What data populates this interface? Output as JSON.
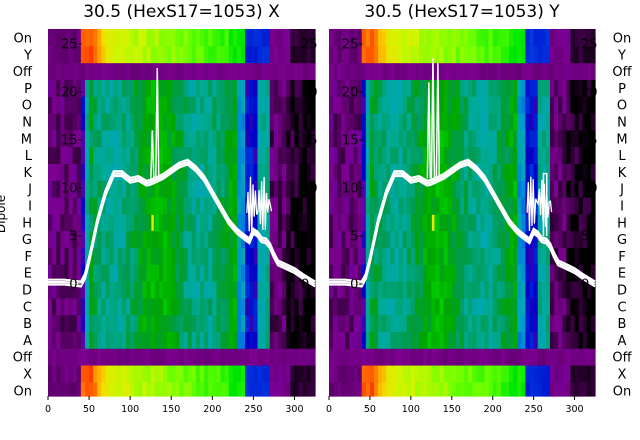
{
  "chart_data": {
    "type": "heatmap",
    "panels": [
      {
        "title": "30.5 (HexS17=1053) X",
        "spike_x": [
          127,
          133
        ],
        "yellow_mark_x": 127
      },
      {
        "title": "30.5 (HexS17=1053) Y",
        "spike_x": [
          122,
          127,
          133
        ],
        "yellow_mark_x": 127
      }
    ],
    "ylabel": "Dipole",
    "x_ticks": [
      0,
      50,
      100,
      150,
      200,
      250,
      300
    ],
    "x_range": [
      0,
      325
    ],
    "y_tick_labels": [
      "On",
      "Y",
      "Off",
      "P",
      "O",
      "N",
      "M",
      "L",
      "K",
      "J",
      "I",
      "H",
      "G",
      "F",
      "E",
      "D",
      "C",
      "B",
      "A",
      "Off",
      "X",
      "On"
    ],
    "right_y_tick_labels": [
      "On",
      "Y",
      "Off",
      "P",
      "O",
      "N",
      "M",
      "L",
      "K",
      "J",
      "I",
      "H",
      "G",
      "F",
      "E",
      "D",
      "C",
      "B",
      "A",
      "Off",
      "X",
      "On"
    ],
    "trace_ticks": [
      0,
      5,
      10,
      15,
      20,
      25
    ],
    "trace_range": [
      0,
      26
    ],
    "trace_points": {
      "x": [
        0,
        20,
        40,
        45,
        50,
        60,
        70,
        80,
        90,
        100,
        110,
        120,
        125,
        130,
        135,
        140,
        150,
        160,
        170,
        180,
        190,
        200,
        210,
        220,
        230,
        240,
        245,
        250,
        255,
        260,
        265,
        270,
        275,
        280,
        290,
        300,
        310,
        325
      ],
      "y": [
        0.2,
        0.2,
        0.0,
        0.8,
        2.5,
        6.5,
        9.5,
        11.5,
        11.5,
        10.8,
        11.0,
        10.5,
        10.6,
        10.8,
        11.0,
        11.2,
        11.8,
        12.4,
        12.7,
        12.0,
        11.0,
        9.5,
        8.0,
        6.5,
        5.5,
        4.8,
        4.5,
        5.5,
        5.2,
        4.6,
        4.5,
        4.0,
        3.0,
        2.2,
        1.8,
        1.4,
        0.8,
        0.0
      ]
    },
    "colormap": "nipy_spectral",
    "grid": false
  }
}
